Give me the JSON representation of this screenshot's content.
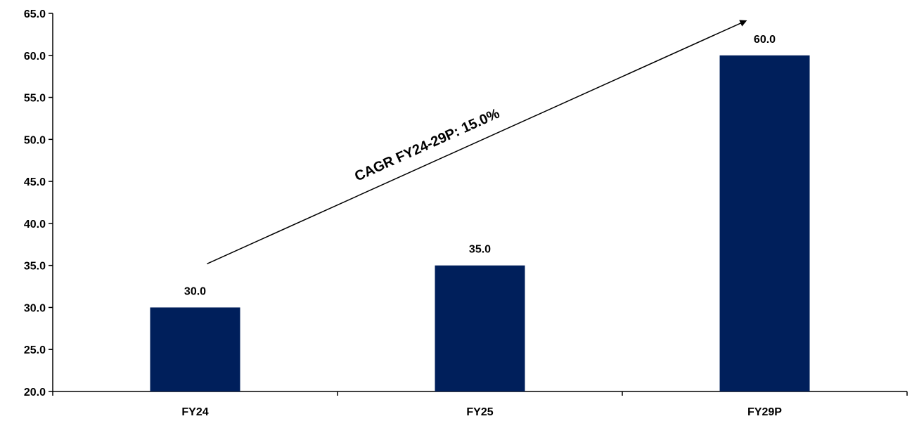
{
  "chart_data": {
    "type": "bar",
    "categories": [
      "FY24",
      "FY25",
      "FY29P"
    ],
    "values": [
      30.0,
      35.0,
      60.0
    ],
    "data_labels": [
      "30.0",
      "35.0",
      "60.0"
    ],
    "ylim": [
      20.0,
      65.0
    ],
    "yticks": [
      "20.0",
      "25.0",
      "30.0",
      "35.0",
      "40.0",
      "45.0",
      "50.0",
      "55.0",
      "60.0",
      "65.0"
    ],
    "grid": false,
    "legend": "none",
    "bar_color": "#001f5b",
    "annotation": {
      "text": "CAGR FY24-29P: 15.0%",
      "arrow_from": {
        "category": "FY24",
        "value": 35.2
      },
      "arrow_to": {
        "category": "FY29P",
        "value": 64.1
      }
    }
  }
}
